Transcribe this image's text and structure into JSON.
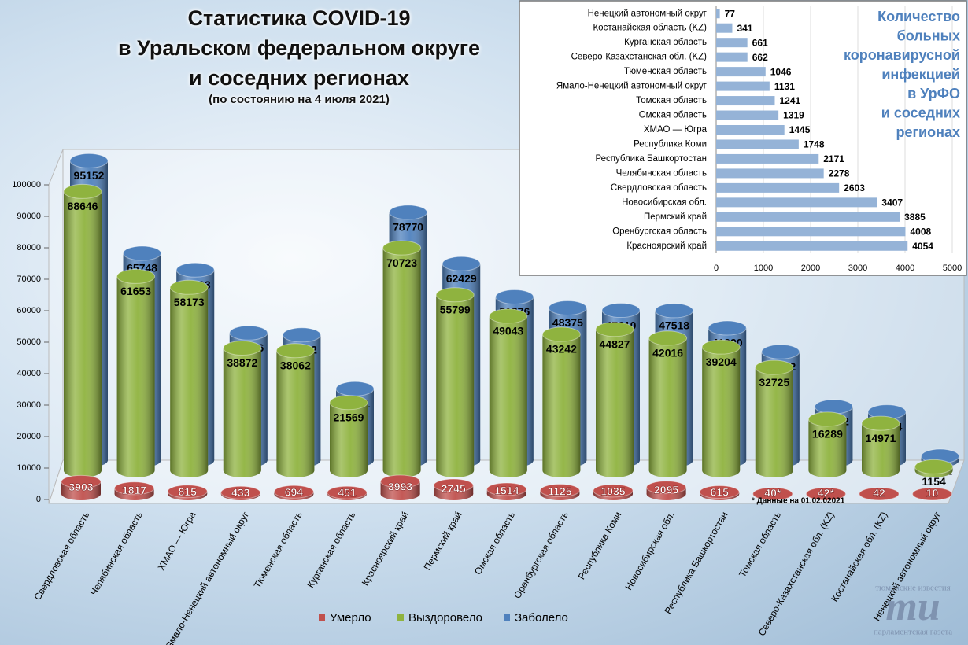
{
  "chart_data": [
    {
      "type": "cylinder3d",
      "title": [
        "Статистика COVID-19",
        "в Уральском федеральном округе",
        "и соседних регионах"
      ],
      "subtitle": "(по состоянию на 4 июля 2021)",
      "annotation": "* Данные на 01.02.02021",
      "categories": [
        "Свердловская область",
        "Челябинская область",
        "ХМАО — Югра",
        "Ямало-Ненецкий автономный округ",
        "Тюменская область",
        "Курганская область",
        "Красноярский край",
        "Пермский край",
        "Омская область",
        "Оренбургская область",
        "Республика Коми",
        "Новосибирская обл.",
        "Республика Башкортостан",
        "Томская область",
        "Северо-Казахстанская обл. (KZ)",
        "Костанайская обл. (KZ)",
        "Ненецкий автономный округ"
      ],
      "series": [
        {
          "name": "Умерло",
          "color": "#c0504d",
          "values": [
            3903,
            1817,
            815,
            433,
            694,
            451,
            3993,
            2745,
            1514,
            1125,
            1035,
            2095,
            615,
            40,
            42,
            42,
            10
          ],
          "value_labels": [
            "3903",
            "1817",
            "815",
            "433",
            "694",
            "451",
            "3993",
            "2745",
            "1514",
            "1125",
            "1035",
            "2095",
            "615",
            "40*",
            "42*",
            "42",
            "10"
          ]
        },
        {
          "name": "Выздоровело",
          "color": "#8fb33f",
          "values": [
            88646,
            61653,
            58173,
            38872,
            38062,
            21569,
            70723,
            55799,
            49043,
            43242,
            44827,
            42016,
            39204,
            32725,
            16289,
            14971,
            1154
          ]
        },
        {
          "name": "Заболело",
          "color": "#4f81bd",
          "values": [
            95152,
            65748,
            60433,
            40436,
            39802,
            22681,
            78770,
            62429,
            51876,
            48375,
            47610,
            47518,
            41990,
            34442,
            16992,
            15354,
            1241
          ]
        }
      ],
      "ylim": [
        0,
        110000
      ],
      "yticks": [
        0,
        10000,
        20000,
        30000,
        40000,
        50000,
        60000,
        70000,
        80000,
        90000,
        100000
      ],
      "legend": "bottom"
    },
    {
      "type": "hbar",
      "title": [
        "Количество",
        "больных",
        "коронавирусной",
        "инфекцией",
        "в УрФО",
        "и соседних",
        "регионах"
      ],
      "categories": [
        "Ненецкий автономный округ",
        "Костанайская область (KZ)",
        "Курганская область",
        "Северо-Казахстанская обл. (KZ)",
        "Тюменская область",
        "Ямало-Ненецкий автономный округ",
        "Томская область",
        "Омская область",
        "ХМАО — Югра",
        "Республика Коми",
        "Республика Башкортостан",
        "Челябинская область",
        "Свердловская область",
        "Новосибирская обл.",
        "Пермский край",
        "Оренбургская область",
        "Красноярский край"
      ],
      "values": [
        77,
        341,
        661,
        662,
        1046,
        1131,
        1241,
        1319,
        1445,
        1748,
        2171,
        2278,
        2603,
        3407,
        3885,
        4008,
        4054
      ],
      "color": "#95b3d7",
      "xlim": [
        0,
        5000
      ],
      "xticks": [
        0,
        1000,
        2000,
        3000,
        4000,
        5000
      ],
      "grid": true
    }
  ],
  "logo": {
    "top": "тюменские известия",
    "mark": "mu",
    "bottom": "парламентская газета"
  }
}
